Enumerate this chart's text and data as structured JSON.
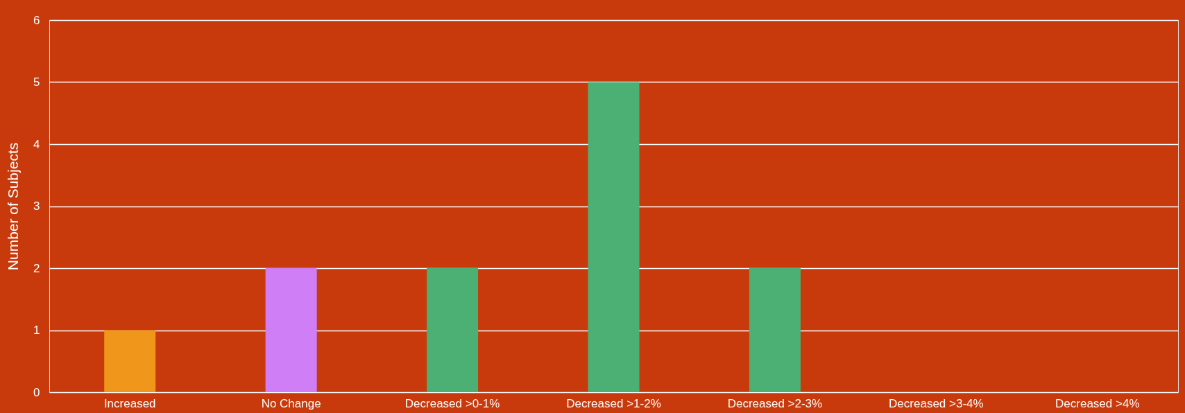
{
  "chart_data": {
    "type": "bar",
    "ylabel": "Number of Subjects",
    "categories": [
      "Increased",
      "No Change",
      "Decreased >0-1%",
      "Decreased >1-2%",
      "Decreased >2-3%",
      "Decreased >3-4%",
      "Decreased >4%"
    ],
    "values": [
      1,
      2,
      2,
      5,
      2,
      0,
      0
    ],
    "colors": [
      "#f0961a",
      "#d07ef5",
      "#4caf74",
      "#4caf74",
      "#4caf74",
      "#4caf74",
      "#4caf74"
    ],
    "ylim": [
      0,
      6
    ],
    "yticks": [
      0,
      1,
      2,
      3,
      4,
      5,
      6
    ],
    "grid": "y"
  }
}
